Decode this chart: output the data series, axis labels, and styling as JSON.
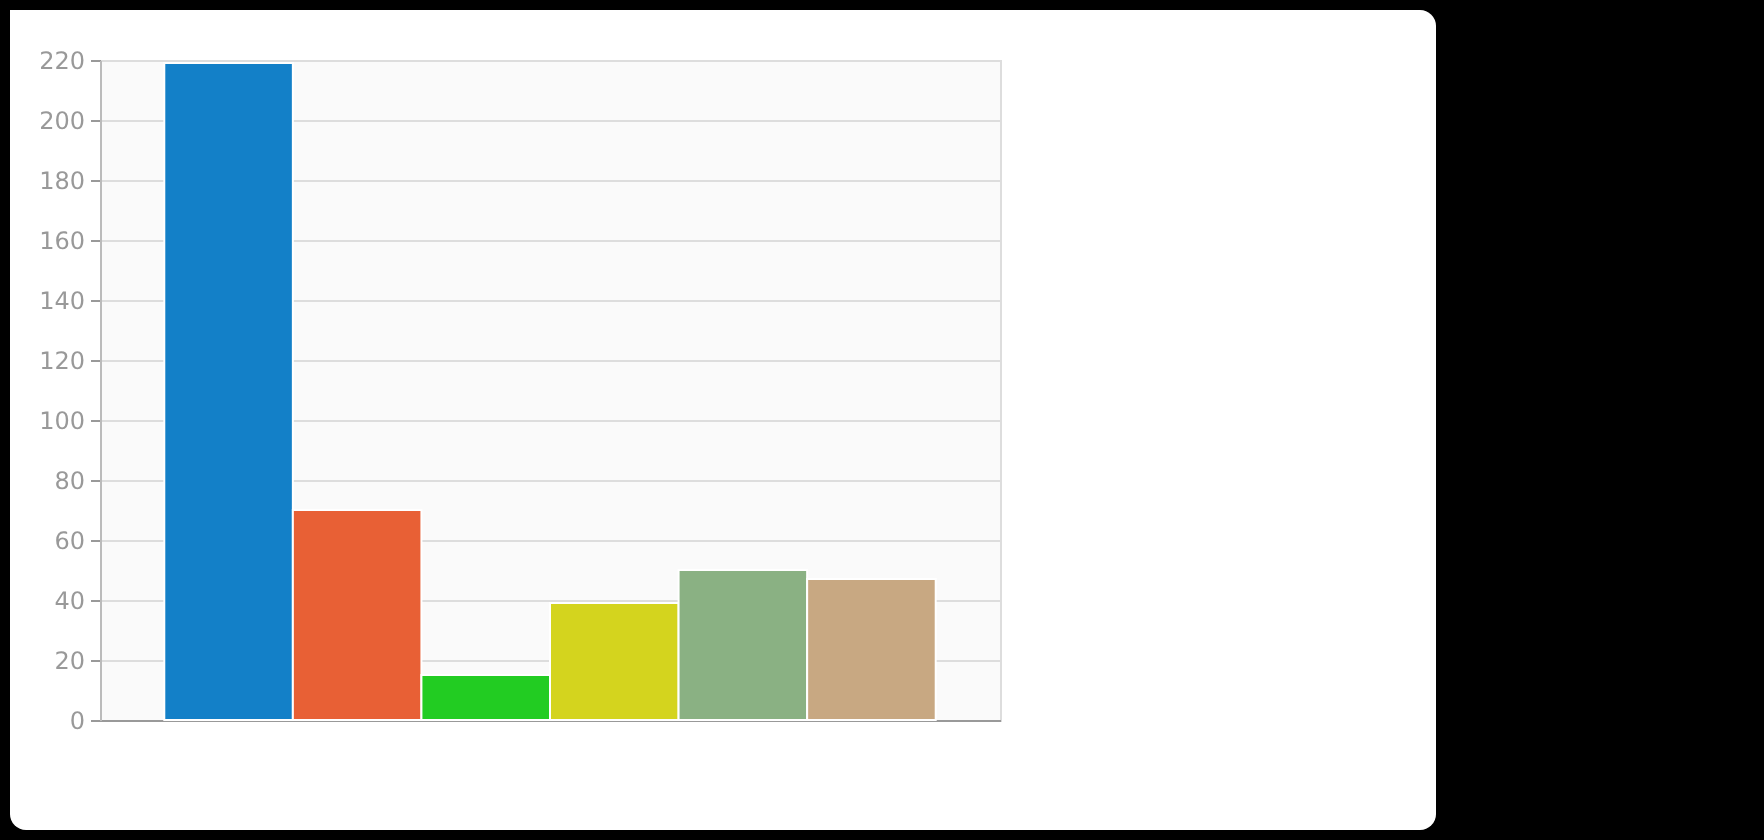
{
  "chart_data": {
    "type": "bar",
    "categories": [
      null,
      null,
      null,
      null,
      null,
      null
    ],
    "values": [
      219,
      70,
      15,
      39,
      50,
      47
    ],
    "colors": [
      "#1380c8",
      "#e86035",
      "#22cc22",
      "#d4d41e",
      "#8ab183",
      "#c8a882"
    ],
    "ylim": [
      0,
      220
    ],
    "yticks": [
      0,
      20,
      40,
      60,
      80,
      100,
      120,
      140,
      160,
      180,
      200,
      220
    ],
    "grid": "y",
    "tick_labels": "y"
  }
}
